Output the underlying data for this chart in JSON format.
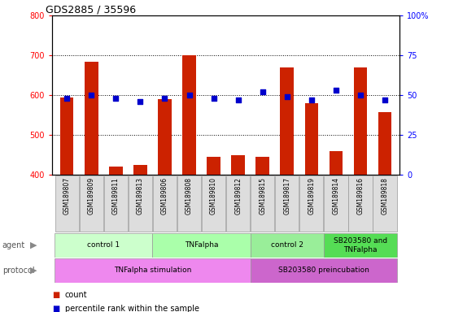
{
  "title": "GDS2885 / 35596",
  "samples": [
    "GSM189807",
    "GSM189809",
    "GSM189811",
    "GSM189813",
    "GSM189806",
    "GSM189808",
    "GSM189810",
    "GSM189812",
    "GSM189815",
    "GSM189817",
    "GSM189819",
    "GSM189814",
    "GSM189816",
    "GSM189818"
  ],
  "counts": [
    595,
    685,
    420,
    425,
    590,
    700,
    445,
    450,
    445,
    670,
    580,
    460,
    670,
    558
  ],
  "percentiles": [
    48,
    50,
    48,
    46,
    48,
    50,
    48,
    47,
    52,
    49,
    47,
    53,
    50,
    47
  ],
  "ylim_left": [
    400,
    800
  ],
  "ylim_right": [
    0,
    100
  ],
  "yticks_left": [
    400,
    500,
    600,
    700,
    800
  ],
  "yticks_right": [
    0,
    25,
    50,
    75,
    100
  ],
  "bar_color": "#cc2200",
  "dot_color": "#0000cc",
  "bar_bottom": 400,
  "agent_groups": [
    {
      "label": "control 1",
      "start": 0,
      "end": 4,
      "color": "#ccffcc"
    },
    {
      "label": "TNFalpha",
      "start": 4,
      "end": 8,
      "color": "#aaffaa"
    },
    {
      "label": "control 2",
      "start": 8,
      "end": 11,
      "color": "#99ee99"
    },
    {
      "label": "SB203580 and\nTNFalpha",
      "start": 11,
      "end": 14,
      "color": "#55dd55"
    }
  ],
  "protocol_groups": [
    {
      "label": "TNFalpha stimulation",
      "start": 0,
      "end": 8,
      "color": "#ee88ee"
    },
    {
      "label": "SB203580 preincubation",
      "start": 8,
      "end": 14,
      "color": "#cc66cc"
    }
  ],
  "legend_count_color": "#cc2200",
  "legend_pct_color": "#0000cc",
  "agent_label": "agent",
  "protocol_label": "protocol"
}
